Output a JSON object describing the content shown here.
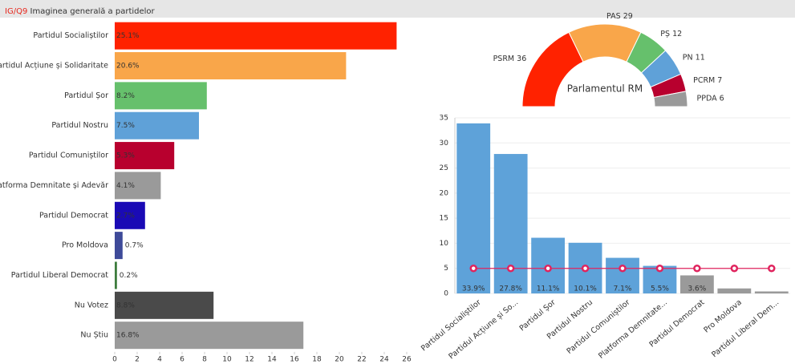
{
  "header": {
    "code": "IG/Q9",
    "title": "Imaginea generală a partidelor"
  },
  "chart_data": [
    {
      "type": "bar",
      "orientation": "horizontal",
      "categories": [
        "Partidul Socialiștilor",
        "Partidul Acțiune și Solidaritate",
        "Partidul Șor",
        "Partidul Nostru",
        "Partidul Comuniștilor",
        "Platforma Demnitate și Adevăr",
        "Partidul Democrat",
        "Pro Moldova",
        "Partidul Liberal Democrat",
        "Nu Votez",
        "Nu Știu"
      ],
      "values": [
        25.1,
        20.6,
        8.2,
        7.5,
        5.3,
        4.1,
        2.7,
        0.7,
        0.2,
        8.8,
        16.8
      ],
      "value_labels": [
        "25.1%",
        "20.6%",
        "8.2%",
        "7.5%",
        "5.3%",
        "4.1%",
        "2.7%",
        "0.7%",
        "0.2%",
        "8.8%",
        "16.8%"
      ],
      "colors": [
        "#ff2200",
        "#f9a64a",
        "#66c06c",
        "#5fa1d8",
        "#b8002e",
        "#9a9a9a",
        "#1a0ab5",
        "#3e4a99",
        "#3e7d3e",
        "#4a4a4a",
        "#9a9a9a"
      ],
      "xlim": [
        0,
        26
      ],
      "xticks": [
        0,
        2,
        4,
        6,
        8,
        10,
        12,
        14,
        16,
        18,
        20,
        22,
        24,
        26
      ]
    },
    {
      "type": "pie",
      "half": true,
      "title": "Parlamentul RM",
      "categories": [
        "PSRM",
        "PAS",
        "PȘ",
        "PN",
        "PCRM",
        "PPDA"
      ],
      "values": [
        36,
        29,
        12,
        11,
        7,
        6
      ],
      "colors": [
        "#ff2200",
        "#f9a64a",
        "#66c06c",
        "#5fa1d8",
        "#b8002e",
        "#9a9a9a"
      ]
    },
    {
      "type": "bar",
      "orientation": "vertical",
      "categories": [
        "Partidul Socialiștilor",
        "Partidul Acțiune și So...",
        "Partidul Șor",
        "Partidul Nostru",
        "Partidul Comuniștilor",
        "Platforma Demnitate...",
        "Partidul Democrat",
        "Pro Moldova",
        "Partidul Liberal Dem..."
      ],
      "series": [
        {
          "type": "bar",
          "values": [
            33.9,
            27.8,
            11.1,
            10.1,
            7.1,
            5.5,
            3.6,
            1.0,
            0.4
          ],
          "value_labels": [
            "33.9%",
            "27.8%",
            "11.1%",
            "10.1%",
            "7.1%",
            "5.5%",
            "3.6%",
            null,
            null
          ],
          "colors": [
            "#5ea2d9",
            "#5ea2d9",
            "#5ea2d9",
            "#5ea2d9",
            "#5ea2d9",
            "#5ea2d9",
            "#9a9a9a",
            "#9a9a9a",
            "#9a9a9a"
          ]
        },
        {
          "type": "line",
          "color": "#e0245e",
          "values": [
            5,
            5,
            5,
            5,
            5,
            5,
            5,
            5,
            5
          ]
        }
      ],
      "ylim": [
        0,
        35
      ],
      "yticks": [
        0,
        5,
        10,
        15,
        20,
        25,
        30,
        35
      ],
      "grid": true
    }
  ]
}
